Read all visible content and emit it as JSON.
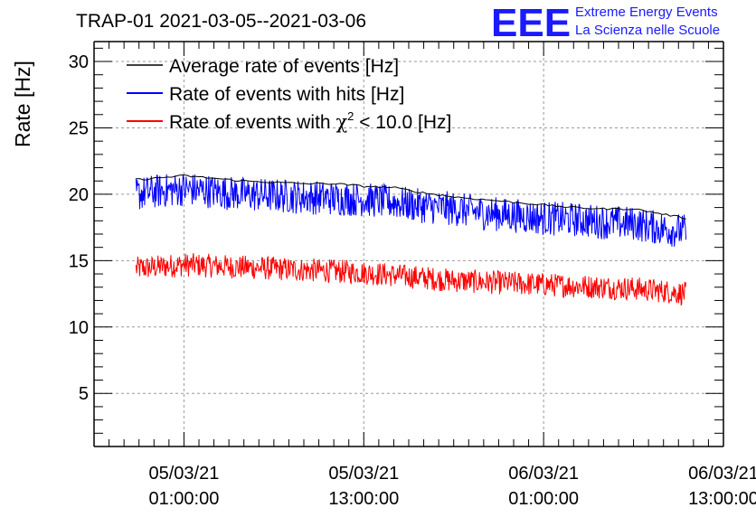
{
  "logo": {
    "mark": "EEE",
    "line1": "Extreme Energy Events",
    "line2": "La Scienza nelle Scuole"
  },
  "chart_data": {
    "type": "line",
    "title": "TRAP-01 2021-03-05--2021-03-06",
    "ylabel": "Rate [Hz]",
    "xlabel": "",
    "x_unit": "hours since 2021-03-04 19:00:00",
    "xlim": [
      0,
      42
    ],
    "ylim": [
      1,
      31.5
    ],
    "yticks": [
      5,
      10,
      15,
      20,
      25,
      30
    ],
    "xticks": [
      {
        "x": 6,
        "line1": "05/03/21",
        "line2": "01:00:00"
      },
      {
        "x": 18,
        "line1": "05/03/21",
        "line2": "13:00:00"
      },
      {
        "x": 30,
        "line1": "06/03/21",
        "line2": "01:00:00"
      },
      {
        "x": 42,
        "line1": "06/03/21",
        "line2": "13:00:00"
      }
    ],
    "grid": true,
    "legend_position": "top-left",
    "legend": [
      {
        "label": "Average rate of events [Hz]",
        "color": "#000000"
      },
      {
        "label": "Rate of events with hits [Hz]",
        "color": "#0000ff"
      },
      {
        "label_prefix": "Rate of events with ",
        "symbol": "χ",
        "superscript": "2",
        "label_suffix": " < 10.0 [Hz]",
        "color": "#ff0000"
      }
    ],
    "series": [
      {
        "name": "Average rate of events [Hz]",
        "color": "#000000",
        "x": [
          2.8,
          4.0,
          6.0,
          8.0,
          10.0,
          12.0,
          14.0,
          16.0,
          18.0,
          20.0,
          22.0,
          24.0,
          26.0,
          28.0,
          30.0,
          32.0,
          34.0,
          36.0,
          38.0,
          39.5
        ],
        "values": [
          21.1,
          21.2,
          21.4,
          21.2,
          21.0,
          20.9,
          20.8,
          20.8,
          20.6,
          20.5,
          20.1,
          19.8,
          19.6,
          19.4,
          19.2,
          19.0,
          18.9,
          18.9,
          18.5,
          18.2
        ]
      },
      {
        "name": "Rate of events with hits [Hz]",
        "color": "#0000ff",
        "x": [
          2.8,
          4.0,
          6.0,
          8.0,
          10.0,
          12.0,
          14.0,
          16.0,
          18.0,
          20.0,
          22.0,
          24.0,
          26.0,
          28.0,
          30.0,
          32.0,
          34.0,
          36.0,
          38.0,
          39.5
        ],
        "values": [
          20.0,
          20.2,
          20.4,
          20.2,
          20.0,
          19.9,
          19.8,
          19.7,
          19.6,
          19.4,
          19.1,
          18.9,
          18.6,
          18.4,
          18.2,
          18.1,
          17.9,
          17.8,
          17.4,
          17.2
        ]
      },
      {
        "name": "Rate of events with χ2 < 10.0 [Hz]",
        "color": "#ff0000",
        "x": [
          2.8,
          4.0,
          6.0,
          8.0,
          10.0,
          12.0,
          14.0,
          16.0,
          18.0,
          20.0,
          22.0,
          24.0,
          26.0,
          28.0,
          30.0,
          32.0,
          34.0,
          36.0,
          38.0,
          39.5
        ],
        "values": [
          14.4,
          14.5,
          14.7,
          14.6,
          14.5,
          14.4,
          14.3,
          14.2,
          14.1,
          13.9,
          13.7,
          13.5,
          13.4,
          13.3,
          13.2,
          13.1,
          13.0,
          12.9,
          12.7,
          12.5
        ]
      }
    ],
    "noise_amplitude": [
      0.0,
      1.3,
      0.9
    ]
  }
}
